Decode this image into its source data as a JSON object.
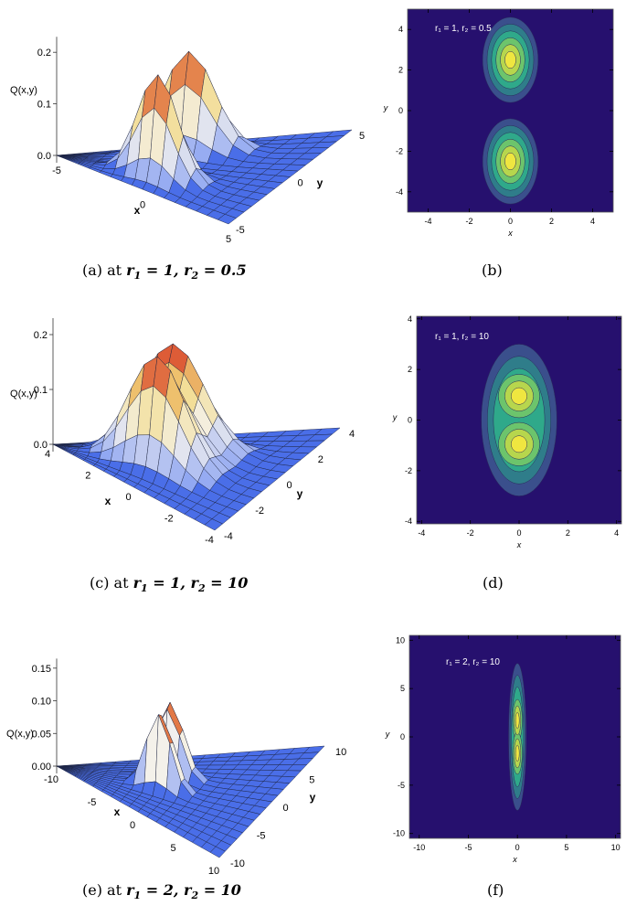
{
  "panels": [
    {
      "id": "a",
      "caption_prefix": "(a) at",
      "caption_math": {
        "r1_label": "r",
        "r1_sub": "1",
        "r1_val": "1",
        "r2_label": "r",
        "r2_sub": "2",
        "r2_val": "0.5"
      }
    },
    {
      "id": "b",
      "caption_prefix": "(b)"
    },
    {
      "id": "c",
      "caption_prefix": "(c) at",
      "caption_math": {
        "r1_label": "r",
        "r1_sub": "1",
        "r1_val": "1",
        "r2_label": "r",
        "r2_sub": "2",
        "r2_val": "10"
      }
    },
    {
      "id": "d",
      "caption_prefix": "(d)"
    },
    {
      "id": "e",
      "caption_prefix": "(e) at",
      "caption_math": {
        "r1_label": "r",
        "r1_sub": "1",
        "r1_val": "2",
        "r2_label": "r",
        "r2_sub": "2",
        "r2_val": "10"
      }
    },
    {
      "id": "f",
      "caption_prefix": "(f)"
    }
  ],
  "colors": {
    "surface_blue": "#4a6ee8",
    "contour_background": "#26106e",
    "contour_levels": [
      "#3a4f8c",
      "#2f7d8a",
      "#2fa98a",
      "#6cc46c",
      "#b7d64d",
      "#efe640"
    ]
  },
  "chart_data": [
    {
      "panel": "a",
      "type": "surface3d",
      "zlabel": "Q(x,y)",
      "xlabel": "x",
      "ylabel": "y",
      "zticks": [
        "0.0",
        "0.1",
        "0.2"
      ],
      "xticks": [
        "-5",
        "0",
        "5"
      ],
      "yticks": [
        "-5",
        "0",
        "5"
      ],
      "xlim": [
        -5,
        5
      ],
      "ylim": [
        -5,
        5
      ],
      "zlim": [
        0,
        0.25
      ],
      "peaks": [
        {
          "x": 0,
          "y": 2.5,
          "z": 0.24
        },
        {
          "x": 0,
          "y": -2.5,
          "z": 0.24
        }
      ]
    },
    {
      "panel": "b",
      "type": "contour",
      "annotation": "r₁ = 1, r₂ = 0.5",
      "xlabel": "x",
      "ylabel": "y",
      "xlim": [
        -5,
        5
      ],
      "ylim": [
        -5,
        5
      ],
      "xticks": [
        "-4",
        "-2",
        "0",
        "2",
        "4"
      ],
      "yticks": [
        "-4",
        "-2",
        "0",
        "2",
        "4"
      ],
      "xtick_values": [
        -4,
        -2,
        0,
        2,
        4
      ],
      "ytick_values": [
        -4,
        -2,
        0,
        2,
        4
      ],
      "blobs": [
        {
          "cx": 0,
          "cy": 2.5,
          "rx": 1.35,
          "ry": 2.1
        },
        {
          "cx": 0,
          "cy": -2.5,
          "rx": 1.35,
          "ry": 2.1
        }
      ]
    },
    {
      "panel": "c",
      "type": "surface3d",
      "zlabel": "Q(x,y)",
      "xlabel": "x",
      "ylabel": "y",
      "zticks": [
        "0.0",
        "0.1",
        "0.2"
      ],
      "xticks": [
        "4",
        "2",
        "0",
        "-2",
        "-4"
      ],
      "yticks": [
        "-4",
        "-2",
        "0",
        "2",
        "4"
      ],
      "xlim": [
        -4,
        4
      ],
      "ylim": [
        -4,
        4
      ],
      "zlim": [
        0,
        0.25
      ],
      "peaks": [
        {
          "x": 0,
          "y": 1,
          "z": 0.24
        },
        {
          "x": 0,
          "y": -1,
          "z": 0.24
        }
      ]
    },
    {
      "panel": "d",
      "type": "contour",
      "annotation": "r₁ = 1, r₂ = 10",
      "xlabel": "x",
      "ylabel": "y",
      "xlim": [
        -4.2,
        4.2
      ],
      "ylim": [
        -4.1,
        4.1
      ],
      "xticks": [
        "-4",
        "-2",
        "0",
        "2",
        "4"
      ],
      "yticks": [
        "-4",
        "-2",
        "0",
        "2",
        "4"
      ],
      "xtick_values": [
        -4,
        -2,
        0,
        2,
        4
      ],
      "ytick_values": [
        -4,
        -2,
        0,
        2,
        4
      ],
      "blobs": [
        {
          "cx": 0,
          "cy": 0,
          "rx": 1.55,
          "ry": 3.0,
          "twin": 0.95
        }
      ]
    },
    {
      "panel": "e",
      "type": "surface3d",
      "zlabel": "Q(x,y)",
      "xlabel": "x",
      "ylabel": "y",
      "zticks": [
        "0.00",
        "0.05",
        "0.10",
        "0.15"
      ],
      "xticks": [
        "-10",
        "-5",
        "0",
        "5",
        "10"
      ],
      "yticks": [
        "-10",
        "-5",
        "0",
        "5",
        "10"
      ],
      "xlim": [
        -10,
        10
      ],
      "ylim": [
        -10,
        10
      ],
      "zlim": [
        0,
        0.17
      ],
      "peaks": [
        {
          "x": 0,
          "y": 1.7,
          "z": 0.165
        },
        {
          "x": 0,
          "y": -1.7,
          "z": 0.165
        }
      ]
    },
    {
      "panel": "f",
      "type": "contour",
      "annotation": "r₁ = 2, r₂ = 10",
      "xlabel": "x",
      "ylabel": "y",
      "xlim": [
        -11,
        10.5
      ],
      "ylim": [
        -10.5,
        10.5
      ],
      "xticks": [
        "-10",
        "-5",
        "0",
        "5",
        "10"
      ],
      "yticks": [
        "-10",
        "-5",
        "0",
        "5",
        "10"
      ],
      "xtick_values": [
        -10,
        -5,
        0,
        5,
        10
      ],
      "ytick_values": [
        -10,
        -5,
        0,
        5,
        10
      ],
      "blobs": [
        {
          "cx": 0,
          "cy": 0,
          "rx": 0.9,
          "ry": 7.6,
          "twin": 1.7
        }
      ]
    }
  ]
}
